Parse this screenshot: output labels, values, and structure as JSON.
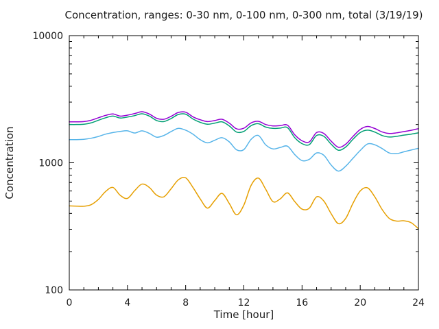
{
  "chart_data": {
    "type": "line",
    "title": "Concentration, ranges: 0-30 nm, 0-100 nm, 0-300 nm, total (3/19/19)",
    "xlabel": "Time [hour]",
    "ylabel": "Concentration",
    "x_start": 0,
    "x_step": 0.5,
    "xlim": [
      0,
      24
    ],
    "ylim": [
      100,
      10000
    ],
    "y_scale": "log10",
    "grid": false,
    "legend_position": "none",
    "x_ticks_major": [
      0,
      4,
      8,
      12,
      16,
      20,
      24
    ],
    "x_minor_step": 1,
    "y_ticks_major": [
      100,
      1000,
      10000
    ],
    "y_tick_labels": [
      "10000",
      "1000",
      "100"
    ],
    "axis_color": "#000000",
    "series": [
      {
        "name": "total",
        "color": "#9400d3",
        "values": [
          2100,
          2100,
          2110,
          2160,
          2260,
          2360,
          2420,
          2330,
          2370,
          2440,
          2520,
          2420,
          2240,
          2200,
          2320,
          2490,
          2500,
          2300,
          2180,
          2110,
          2150,
          2200,
          2050,
          1850,
          1870,
          2060,
          2120,
          2000,
          1950,
          1960,
          1975,
          1660,
          1490,
          1460,
          1730,
          1700,
          1480,
          1325,
          1400,
          1610,
          1830,
          1930,
          1860,
          1750,
          1700,
          1720,
          1760,
          1800,
          1855
        ]
      },
      {
        "name": "0-300 nm",
        "color": "#009e73",
        "values": [
          2000,
          2000,
          2010,
          2060,
          2160,
          2260,
          2330,
          2250,
          2290,
          2350,
          2430,
          2330,
          2150,
          2110,
          2230,
          2400,
          2410,
          2210,
          2080,
          2010,
          2050,
          2100,
          1950,
          1745,
          1765,
          1960,
          2030,
          1910,
          1865,
          1875,
          1890,
          1575,
          1415,
          1390,
          1640,
          1615,
          1400,
          1255,
          1330,
          1530,
          1730,
          1805,
          1745,
          1640,
          1595,
          1615,
          1650,
          1680,
          1720
        ]
      },
      {
        "name": "0-100 nm",
        "color": "#56b4e9",
        "values": [
          1520,
          1520,
          1530,
          1560,
          1610,
          1680,
          1730,
          1765,
          1785,
          1715,
          1785,
          1705,
          1590,
          1640,
          1760,
          1865,
          1805,
          1680,
          1520,
          1435,
          1505,
          1575,
          1460,
          1265,
          1270,
          1530,
          1640,
          1385,
          1285,
          1320,
          1350,
          1160,
          1040,
          1065,
          1195,
          1145,
          960,
          860,
          940,
          1085,
          1250,
          1405,
          1385,
          1295,
          1195,
          1180,
          1220,
          1260,
          1300
        ]
      },
      {
        "name": "0-30 nm",
        "color": "#e69f00",
        "values": [
          458,
          456,
          455,
          468,
          515,
          595,
          640,
          555,
          525,
          605,
          680,
          640,
          557,
          540,
          625,
          735,
          762,
          640,
          520,
          440,
          505,
          575,
          478,
          390,
          465,
          665,
          758,
          620,
          495,
          520,
          580,
          495,
          432,
          440,
          540,
          500,
          398,
          332,
          365,
          480,
          600,
          635,
          540,
          430,
          365,
          348,
          350,
          338,
          303
        ]
      }
    ]
  }
}
